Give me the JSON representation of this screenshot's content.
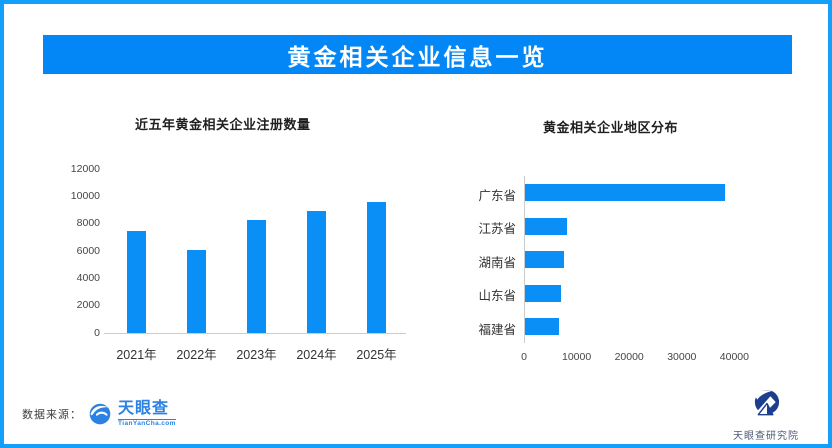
{
  "colors": {
    "frame": "#12a0fa",
    "banner_bg": "#0487f6",
    "bar": "#0a8ff7",
    "axis": "#cccccc",
    "brand_blue": "#2b82e4",
    "institute_navy": "#1d3e8e"
  },
  "banner": {
    "title": "黄金相关企业信息一览"
  },
  "source": {
    "label": "数据来源：",
    "brand": "天眼查",
    "brand_sub": "TianYanCha.com"
  },
  "institute": {
    "label": "天眼查研究院"
  },
  "chart_data": [
    {
      "type": "bar",
      "orientation": "vertical",
      "title": "近五年黄金相关企业注册数量",
      "categories": [
        "2021年",
        "2022年",
        "2023年",
        "2024年",
        "2025年"
      ],
      "values": [
        7500,
        6100,
        8300,
        8900,
        9600
      ],
      "ylabel": "",
      "xlabel": "",
      "ylim": [
        0,
        12000
      ],
      "yticks": [
        0,
        2000,
        4000,
        6000,
        8000,
        10000,
        12000
      ],
      "grid": false,
      "legend": false
    },
    {
      "type": "bar",
      "orientation": "horizontal",
      "title": "黄金相关企业地区分布",
      "categories": [
        "广东省",
        "江苏省",
        "湖南省",
        "山东省",
        "福建省"
      ],
      "values": [
        38000,
        8000,
        7400,
        6900,
        6500
      ],
      "ylabel": "",
      "xlabel": "",
      "xlim": [
        0,
        40000
      ],
      "xticks": [
        0,
        10000,
        20000,
        30000,
        40000
      ],
      "grid": false,
      "legend": false
    }
  ]
}
